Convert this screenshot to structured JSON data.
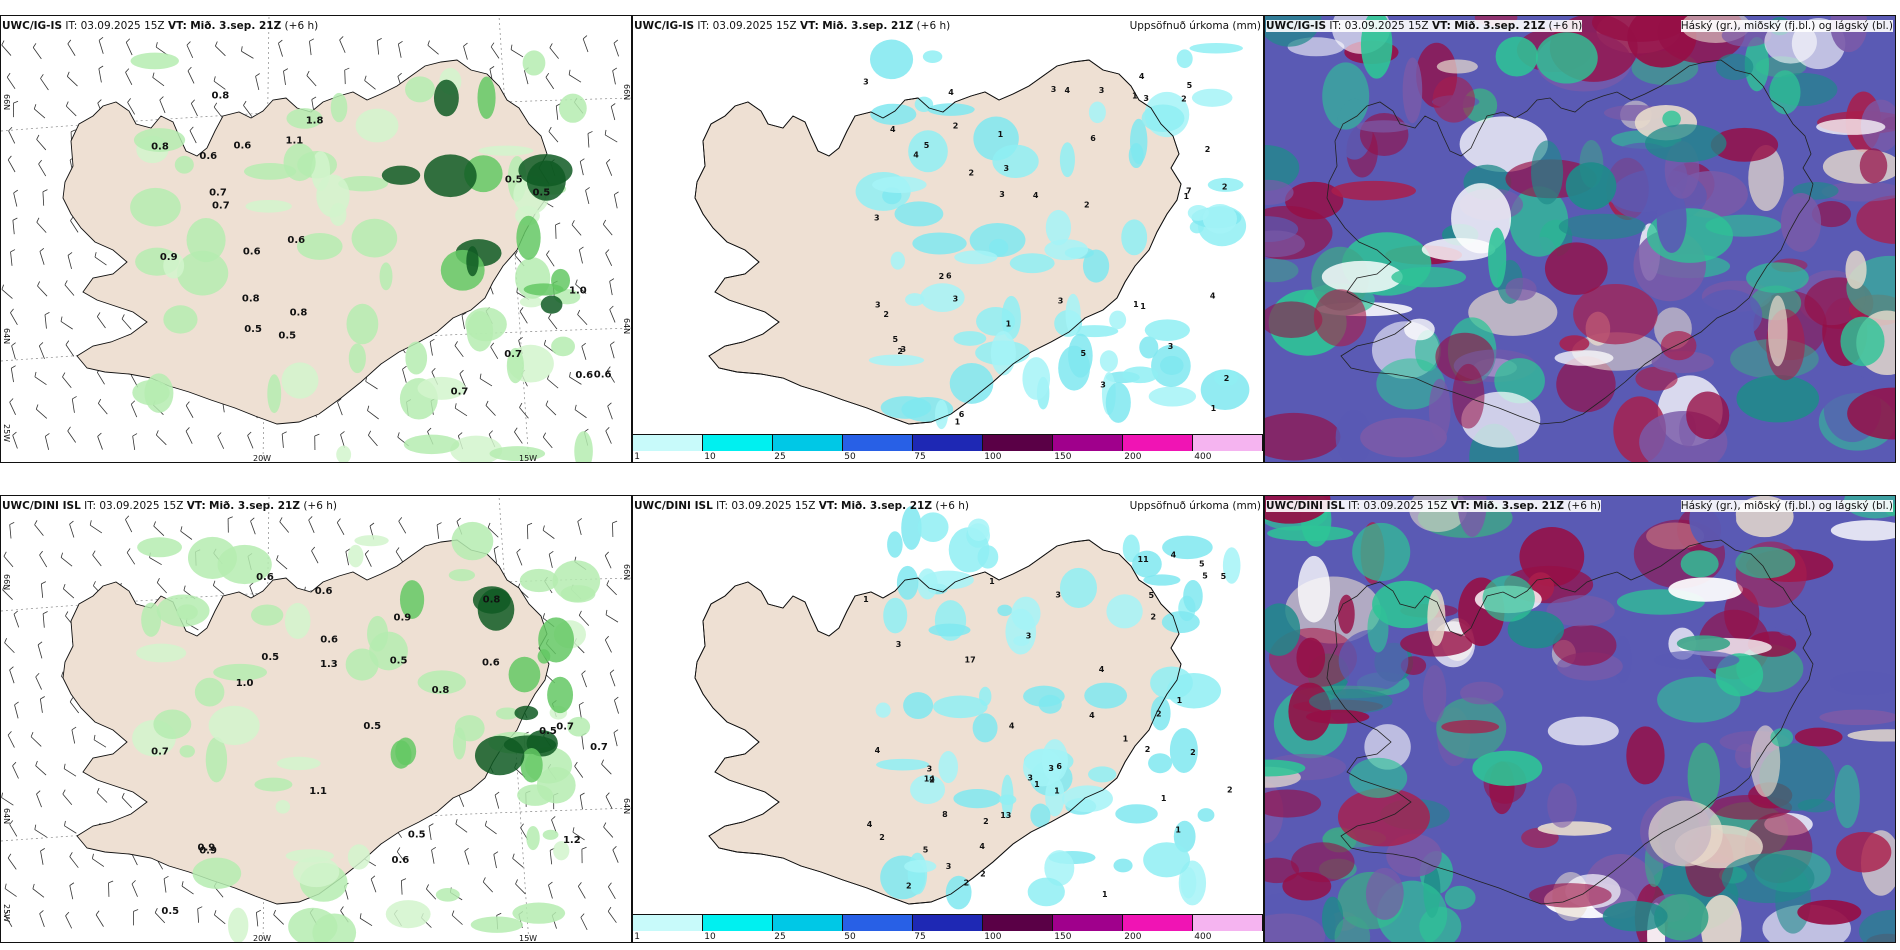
{
  "panels": {
    "p1": {
      "model": "UWC/IG-IS",
      "it_label": "IT:",
      "it": "03.09.2025 15Z",
      "vt_label": "VT:",
      "vt": "Mið. 3.sep. 21Z",
      "lead": "(+6 h)",
      "right": ""
    },
    "p2": {
      "model": "UWC/IG-IS",
      "it_label": "IT:",
      "it": "03.09.2025 15Z",
      "vt_label": "VT:",
      "vt": "Mið. 3.sep. 21Z",
      "lead": "(+6 h)",
      "right": "Uppsöfnuð úrkoma (mm)"
    },
    "p3": {
      "model": "UWC/IG-IS",
      "it_label": "IT:",
      "it": "03.09.2025 15Z",
      "vt_label": "VT:",
      "vt": "Mið. 3.sep. 21Z",
      "lead": "(+6 h)",
      "right": "Háský (gr.), miðský (fj.bl.) og lágský (bl.)"
    },
    "p4": {
      "model": "UWC/DINI ISL",
      "it_label": "IT:",
      "it": "03.09.2025 15Z",
      "vt_label": "VT:",
      "vt": "Mið. 3.sep. 21Z",
      "lead": "(+6 h)",
      "right": ""
    },
    "p5": {
      "model": "UWC/DINI ISL",
      "it_label": "IT:",
      "it": "03.09.2025 15Z",
      "vt_label": "VT:",
      "vt": "Mið. 3.sep. 21Z",
      "lead": "(+6 h)",
      "right": "Uppsöfnuð úrkoma (mm)"
    },
    "p6": {
      "model": "UWC/DINI ISL",
      "it_label": "IT:",
      "it": "03.09.2025 15Z",
      "vt_label": "VT:",
      "vt": "Mið. 3.sep. 21Z",
      "lead": "(+6 h)",
      "right": "Háský (gr.), miðský (fj.bl.) og lágský (bl.)"
    }
  },
  "axes": {
    "lat_66": "66N",
    "lat_64": "64N",
    "lon_25": "25W",
    "lon_20": "20W",
    "lon_15": "15W"
  },
  "colorbar": {
    "labels": [
      "1",
      "10",
      "25",
      "50",
      "75",
      "100",
      "150",
      "200",
      "400"
    ],
    "colors": [
      "#c8fafa",
      "#00f0f0",
      "#00c8e6",
      "#2860e6",
      "#1e28b4",
      "#5a0046",
      "#a0008c",
      "#f014b4",
      "#f5b4f0"
    ]
  },
  "colors": {
    "land": "#eee0d3",
    "precip": "#7fe7f0",
    "green_light": "#b5ecb0",
    "green_mid": "#64c864",
    "green_dark": "#0f5a23",
    "cloud_high": "#2ec496",
    "cloud_mid": "#5a5ab4",
    "cloud_low": "#960f46"
  },
  "wind_values_top": [
    "0.8",
    "0.8",
    "0.5",
    "0.7",
    "0.6",
    "0.6",
    "0.6",
    "0.5",
    "0.6",
    "0.8",
    "0.9",
    "0.7",
    "0.8",
    "0.5",
    "0.6",
    "0.5",
    "1.1",
    "0.7",
    "0.6",
    "0.7",
    "1.0",
    "1.8"
  ],
  "wind_values_bottom": [
    "0.7",
    "0.6",
    "0.6",
    "0.7",
    "0.5",
    "0.9",
    "0.7",
    "0.5",
    "1.0",
    "0.9",
    "0.6",
    "0.8",
    "0.9",
    "0.5",
    "0.5",
    "0.6",
    "0.5",
    "1.2",
    "0.5",
    "0.8",
    "1.3",
    "1.1",
    "0.6"
  ],
  "precip_values_top": [
    "3",
    "3",
    "3",
    "5",
    "1",
    "3",
    "6",
    "4",
    "7",
    "3",
    "2",
    "2",
    "2",
    "4",
    "4",
    "5",
    "4",
    "2",
    "3",
    "5",
    "1",
    "3",
    "2",
    "2",
    "4",
    "6",
    "4",
    "3",
    "3",
    "3",
    "6",
    "1",
    "1",
    "2",
    "2",
    "3",
    "4",
    "3",
    "2",
    "3",
    "5",
    "1",
    "1",
    "1",
    "2",
    "1"
  ],
  "precip_values_bottom": [
    "1",
    "1",
    "4",
    "5",
    "2",
    "2",
    "3",
    "4",
    "4",
    "5",
    "2",
    "1",
    "1",
    "1",
    "2",
    "3",
    "2",
    "4",
    "3",
    "3",
    "2",
    "1",
    "4",
    "5",
    "5",
    "6",
    "11",
    "17",
    "14",
    "13",
    "3",
    "4",
    "3",
    "3",
    "2",
    "2",
    "2",
    "1",
    "1",
    "8",
    "2",
    "2",
    "4",
    "1",
    "5"
  ]
}
